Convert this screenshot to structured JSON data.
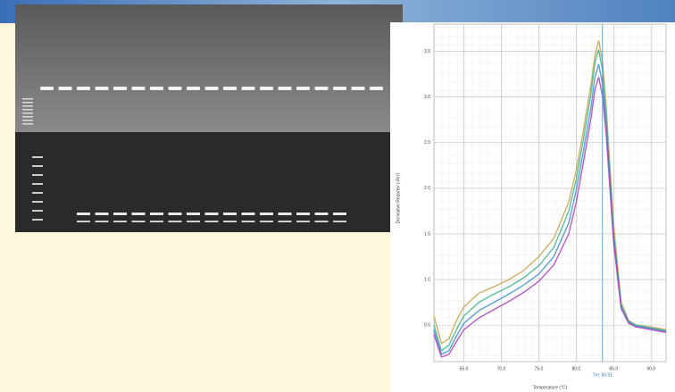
{
  "chart_data": {
    "type": "line",
    "x_label": "Temperature (°C)",
    "y_label": "Derivative Reporter (-Rn')",
    "x": [
      61,
      62,
      63,
      64,
      65,
      67,
      69,
      71,
      73,
      75,
      77,
      79,
      80,
      81,
      82,
      82.5,
      83,
      83.5,
      84,
      85,
      86,
      87,
      88,
      90,
      92
    ],
    "series": [
      {
        "color": "#c9a24a",
        "values": [
          0.6,
          0.3,
          0.35,
          0.55,
          0.7,
          0.85,
          0.92,
          1.0,
          1.1,
          1.25,
          1.45,
          1.85,
          2.2,
          2.65,
          3.15,
          3.45,
          3.62,
          3.4,
          2.9,
          1.6,
          0.75,
          0.55,
          0.5,
          0.48,
          0.45
        ]
      },
      {
        "color": "#3fb58a",
        "values": [
          0.5,
          0.22,
          0.28,
          0.45,
          0.6,
          0.75,
          0.84,
          0.92,
          1.02,
          1.15,
          1.35,
          1.75,
          2.1,
          2.55,
          3.05,
          3.38,
          3.52,
          3.3,
          2.8,
          1.5,
          0.72,
          0.54,
          0.5,
          0.47,
          0.44
        ]
      },
      {
        "color": "#3d8fd0",
        "values": [
          0.45,
          0.18,
          0.22,
          0.38,
          0.52,
          0.66,
          0.75,
          0.84,
          0.94,
          1.06,
          1.25,
          1.62,
          1.98,
          2.42,
          2.9,
          3.22,
          3.36,
          3.15,
          2.7,
          1.45,
          0.7,
          0.53,
          0.49,
          0.46,
          0.43
        ]
      },
      {
        "color": "#b03cc0",
        "values": [
          0.4,
          0.15,
          0.18,
          0.32,
          0.45,
          0.58,
          0.67,
          0.76,
          0.86,
          0.98,
          1.16,
          1.5,
          1.85,
          2.3,
          2.78,
          3.08,
          3.22,
          3.02,
          2.6,
          1.4,
          0.68,
          0.52,
          0.48,
          0.45,
          0.42
        ]
      }
    ],
    "marker": {
      "x": 83.51,
      "label": "Tm: 83.51"
    },
    "xlim": [
      61,
      92
    ],
    "xticks": [
      {
        "value": 65,
        "label": "65.0"
      },
      {
        "value": 70,
        "label": "70.0"
      },
      {
        "value": 75,
        "label": "75.0"
      },
      {
        "value": 80,
        "label": "80.0"
      },
      {
        "value": 85,
        "label": "85.0"
      },
      {
        "value": 90,
        "label": "90.0"
      }
    ],
    "ylim": [
      0.1,
      3.8
    ],
    "yticks": [
      0.5,
      {
        "value": 1,
        "label": "1.0"
      },
      1.5,
      {
        "value": 2,
        "label": "2.0"
      },
      2.5,
      {
        "value": 3,
        "label": "3.0"
      },
      3.5
    ],
    "grid": true
  }
}
